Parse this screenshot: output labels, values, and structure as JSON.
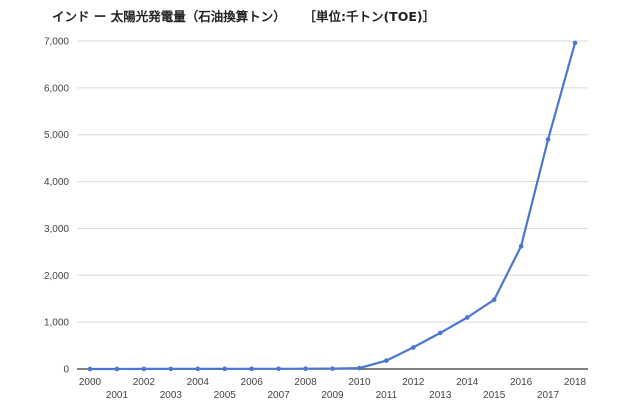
{
  "chart_data": {
    "type": "line",
    "title": "インド ー 太陽光発電量（石油換算トン）",
    "unit_label": "［単位:千トン(TOE)］",
    "xlabel": "",
    "ylabel": "",
    "ylim": [
      0,
      7000
    ],
    "yticks": [
      0,
      1000,
      2000,
      3000,
      4000,
      5000,
      6000,
      7000
    ],
    "ytick_labels": [
      "0",
      "1,000",
      "2,000",
      "3,000",
      "4,000",
      "5,000",
      "6,000",
      "7,000"
    ],
    "x": [
      "2000",
      "2001",
      "2002",
      "2003",
      "2004",
      "2005",
      "2006",
      "2007",
      "2008",
      "2009",
      "2010",
      "2011",
      "2012",
      "2013",
      "2014",
      "2015",
      "2016",
      "2017",
      "2018"
    ],
    "series": [
      {
        "name": "",
        "color": "#4a78d0",
        "values": [
          1,
          1,
          2,
          2,
          3,
          3,
          4,
          5,
          6,
          8,
          20,
          180,
          460,
          770,
          1100,
          1480,
          2620,
          4900,
          6960
        ]
      }
    ],
    "grid": true,
    "legend": "none"
  }
}
